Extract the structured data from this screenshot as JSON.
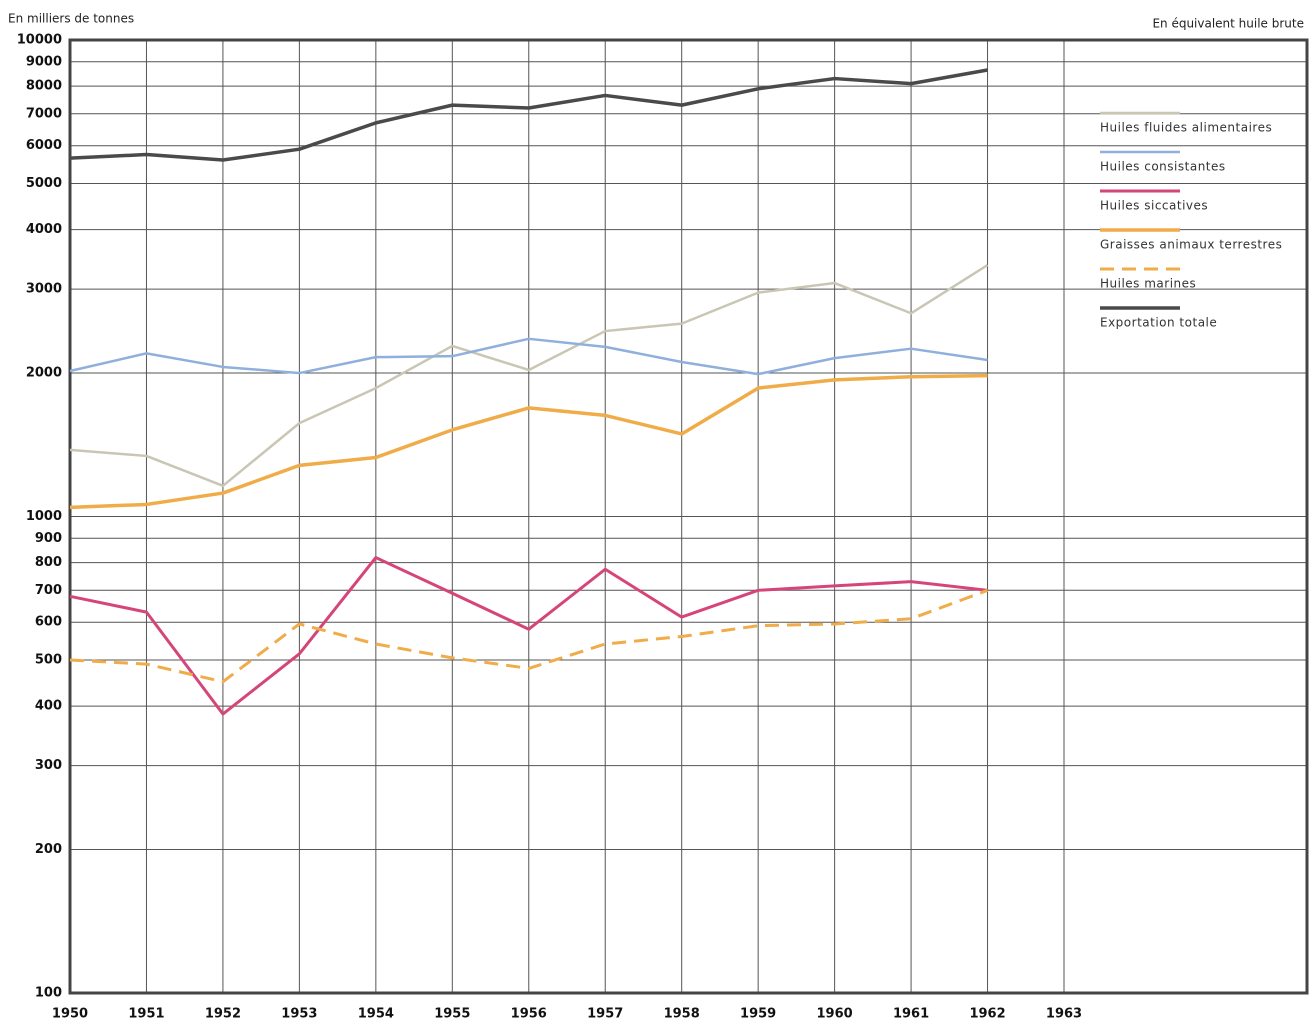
{
  "chart_data": {
    "type": "line",
    "y_label": "En milliers de tonnes",
    "annotation": "En équivalent huile brute",
    "x": [
      1950,
      1951,
      1952,
      1953,
      1954,
      1955,
      1956,
      1957,
      1958,
      1959,
      1960,
      1961,
      1962
    ],
    "xlim": [
      1950,
      1963
    ],
    "xticks": [
      1950,
      1951,
      1952,
      1953,
      1954,
      1955,
      1956,
      1957,
      1958,
      1959,
      1960,
      1961,
      1962,
      1963
    ],
    "ylim": [
      100,
      10000
    ],
    "log_scale": true,
    "yticks": [
      100,
      200,
      300,
      400,
      500,
      600,
      700,
      800,
      900,
      1000,
      2000,
      3000,
      4000,
      5000,
      6000,
      7000,
      8000,
      9000,
      10000
    ],
    "grid": true,
    "legend": "right",
    "series": [
      {
        "name": "Huiles fluides alimentaires",
        "color": "#c9c6b4",
        "values": [
          1380,
          1340,
          1160,
          1570,
          1860,
          2280,
          2030,
          2450,
          2540,
          2950,
          3090,
          2670,
          3370
        ]
      },
      {
        "name": "Huiles consistantes",
        "color": "#8fb0dc",
        "values": [
          2020,
          2200,
          2060,
          2000,
          2160,
          2170,
          2360,
          2270,
          2110,
          1990,
          2150,
          2250,
          2130
        ]
      },
      {
        "name": "Huiles siccatives",
        "color": "#d6457a",
        "values": [
          680,
          630,
          385,
          515,
          820,
          690,
          580,
          775,
          615,
          700,
          715,
          730,
          700
        ]
      },
      {
        "name": "Graisses animaux terrestres",
        "color": "#f0ac48",
        "values": [
          1045,
          1060,
          1120,
          1280,
          1330,
          1520,
          1690,
          1630,
          1490,
          1860,
          1935,
          1965,
          1975
        ]
      },
      {
        "name": "Huiles marines",
        "color": "#f0ac48",
        "dashed": true,
        "values": [
          500,
          490,
          450,
          595,
          540,
          505,
          480,
          540,
          560,
          590,
          595,
          610,
          700
        ]
      },
      {
        "name": "Exportation totale",
        "color": "#4a4a4a",
        "values": [
          5650,
          5750,
          5600,
          5900,
          6700,
          7300,
          7200,
          7650,
          7300,
          7900,
          8300,
          8100,
          8650
        ]
      }
    ]
  }
}
